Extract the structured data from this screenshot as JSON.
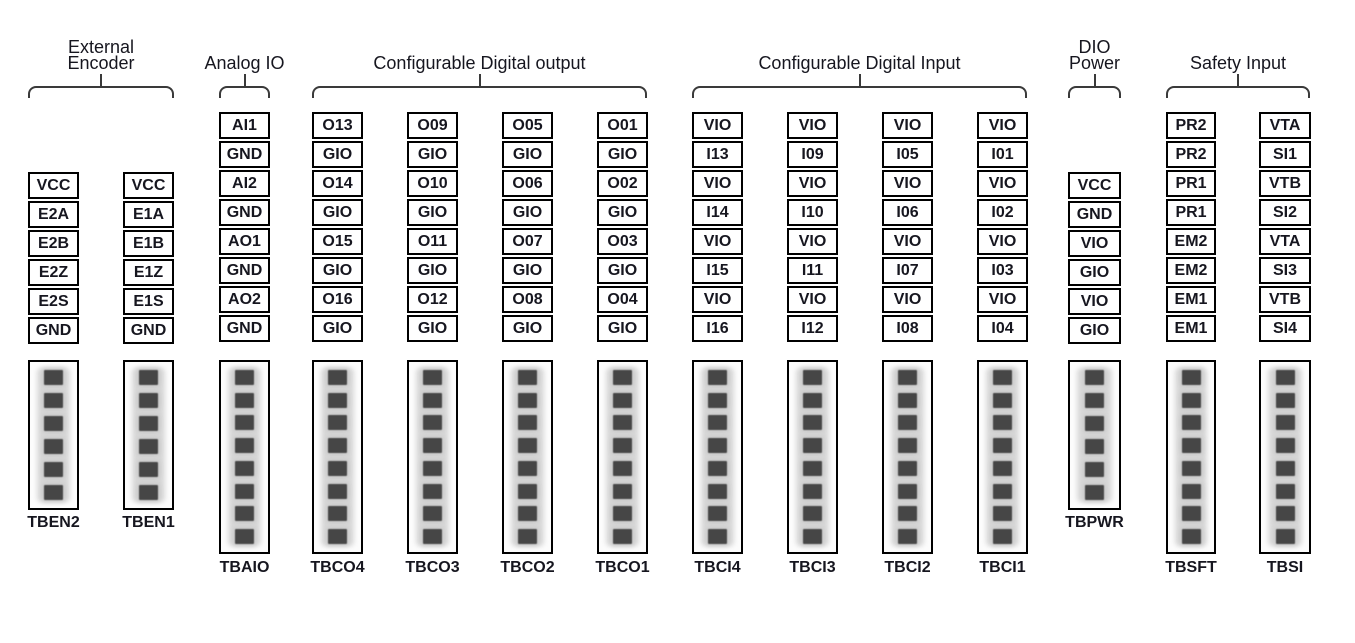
{
  "colors": {
    "background": "#ffffff",
    "line": "#000000",
    "text": "#16161f",
    "brace": "#3a3a3a",
    "connector_bg": "#fcfcfc",
    "connector_strip": "#d9d9d9",
    "terminal": "#464646"
  },
  "groups": [
    {
      "name": "external-encoder",
      "header": "External\nEncoder",
      "blocks": [
        {
          "label": "TBEN2",
          "pins": [
            "VCC",
            "E2A",
            "E2B",
            "E2Z",
            "E2S",
            "GND"
          ]
        },
        {
          "label": "TBEN1",
          "pins": [
            "VCC",
            "E1A",
            "E1B",
            "E1Z",
            "E1S",
            "GND"
          ]
        }
      ]
    },
    {
      "name": "analog-io",
      "header": "Analog IO",
      "blocks": [
        {
          "label": "TBAIO",
          "pins": [
            "AI1",
            "GND",
            "AI2",
            "GND",
            "AO1",
            "GND",
            "AO2",
            "GND"
          ]
        }
      ]
    },
    {
      "name": "configurable-digital-output",
      "header": "Configurable Digital output",
      "blocks": [
        {
          "label": "TBCO4",
          "pins": [
            "O13",
            "GIO",
            "O14",
            "GIO",
            "O15",
            "GIO",
            "O16",
            "GIO"
          ]
        },
        {
          "label": "TBCO3",
          "pins": [
            "O09",
            "GIO",
            "O10",
            "GIO",
            "O11",
            "GIO",
            "O12",
            "GIO"
          ]
        },
        {
          "label": "TBCO2",
          "pins": [
            "O05",
            "GIO",
            "O06",
            "GIO",
            "O07",
            "GIO",
            "O08",
            "GIO"
          ]
        },
        {
          "label": "TBCO1",
          "pins": [
            "O01",
            "GIO",
            "O02",
            "GIO",
            "O03",
            "GIO",
            "O04",
            "GIO"
          ]
        }
      ]
    },
    {
      "name": "configurable-digital-input",
      "header": "Configurable Digital Input",
      "blocks": [
        {
          "label": "TBCI4",
          "pins": [
            "VIO",
            "I13",
            "VIO",
            "I14",
            "VIO",
            "I15",
            "VIO",
            "I16"
          ]
        },
        {
          "label": "TBCI3",
          "pins": [
            "VIO",
            "I09",
            "VIO",
            "I10",
            "VIO",
            "I11",
            "VIO",
            "I12"
          ]
        },
        {
          "label": "TBCI2",
          "pins": [
            "VIO",
            "I05",
            "VIO",
            "I06",
            "VIO",
            "I07",
            "VIO",
            "I08"
          ]
        },
        {
          "label": "TBCI1",
          "pins": [
            "VIO",
            "I01",
            "VIO",
            "I02",
            "VIO",
            "I03",
            "VIO",
            "I04"
          ]
        }
      ]
    },
    {
      "name": "dio-power",
      "header": "DIO\nPower",
      "blocks": [
        {
          "label": "TBPWR",
          "pins": [
            "VCC",
            "GND",
            "VIO",
            "GIO",
            "VIO",
            "GIO"
          ]
        }
      ]
    },
    {
      "name": "safety-input",
      "header": "Safety Input",
      "blocks": [
        {
          "label": "TBSFT",
          "pins": [
            "PR2",
            "PR2",
            "PR1",
            "PR1",
            "EM2",
            "EM2",
            "EM1",
            "EM1"
          ]
        },
        {
          "label": "TBSI",
          "pins": [
            "VTA",
            "SI1",
            "VTB",
            "SI2",
            "VTA",
            "SI3",
            "VTB",
            "SI4"
          ]
        }
      ]
    }
  ]
}
